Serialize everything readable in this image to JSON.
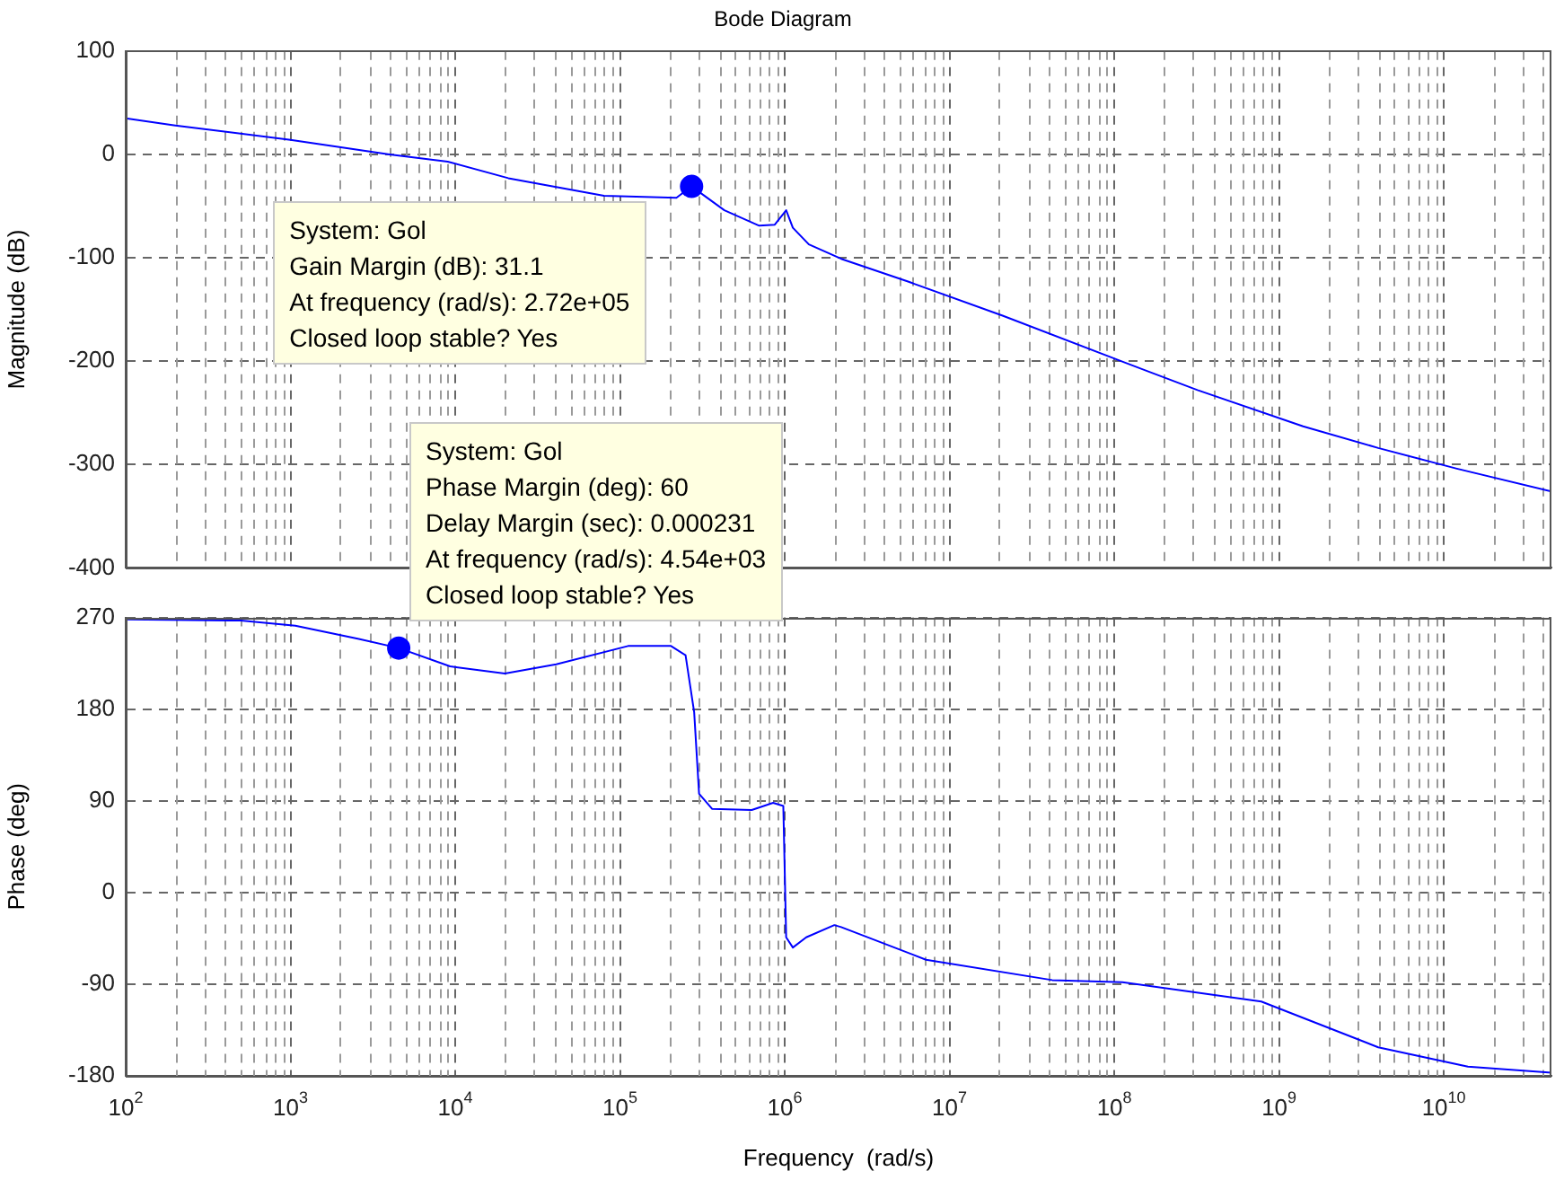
{
  "chart_data": [
    {
      "type": "line",
      "title": "Bode Diagram",
      "ylabel": "Magnitude (dB)",
      "log": "x",
      "grid": true,
      "tick_labels": "y",
      "xlim": [
        100,
        45000000000
      ],
      "xticks": [
        {
          "value": 100,
          "label": null
        },
        {
          "value": 1000,
          "label": null
        },
        {
          "value": 10000,
          "label": null
        },
        {
          "value": 100000,
          "label": null
        },
        {
          "value": 1000000,
          "label": null
        },
        {
          "value": 10000000,
          "label": null
        },
        {
          "value": 100000000,
          "label": null
        },
        {
          "value": 1000000000,
          "label": null
        },
        {
          "value": 10000000000,
          "label": null
        }
      ],
      "ylim": [
        -400,
        100
      ],
      "yticks": [
        -400,
        -300,
        -200,
        -100,
        0,
        100
      ],
      "series": [
        {
          "color": "#0000ff",
          "x": [
            100,
            200,
            1000,
            4000,
            9000,
            21000,
            80000,
            220000,
            272000,
            430000,
            700000,
            870000,
            1020000,
            1120000,
            1400000,
            2200000,
            5600000,
            21000000,
            110000000,
            320000000,
            1400000000,
            4000000000,
            12000000000,
            45000000000
          ],
          "values": [
            35,
            28,
            14,
            0,
            -7,
            -23,
            -40,
            -42,
            -31,
            -54,
            -69,
            -68,
            -54,
            -71,
            -87,
            -101,
            -123,
            -156,
            -200,
            -228,
            -263,
            -284,
            -304,
            -326
          ]
        },
        {
          "type": "scatter",
          "color": "#0000ff",
          "marker": "circle",
          "x": [
            272000
          ],
          "values": [
            -31
          ]
        }
      ],
      "annotations": [
        {
          "text": "System: Gol\nGain Margin (dB): 31.1\nAt frequency (rad/s): 2.72e+05\nClosed loop stable? Yes",
          "x": 272000,
          "y": -31
        }
      ]
    },
    {
      "type": "line",
      "ylabel": "Phase (deg)",
      "xlabel": "Frequency  (rad/s)",
      "log": "x",
      "grid": true,
      "xlim": [
        100,
        45000000000
      ],
      "xticks": [
        {
          "value": 100,
          "label": "10$^{2}$"
        },
        {
          "value": 1000,
          "label": "10$^{3}$"
        },
        {
          "value": 10000,
          "label": "10$^{4}$"
        },
        {
          "value": 100000,
          "label": "10$^{5}$"
        },
        {
          "value": 1000000,
          "label": "10$^{6}$"
        },
        {
          "value": 10000000,
          "label": "10$^{7}$"
        },
        {
          "value": 100000000,
          "label": "10$^{8}$"
        },
        {
          "value": 1000000000,
          "label": "10$^{9}$"
        },
        {
          "value": 10000000000,
          "label": "10$^{10}$"
        }
      ],
      "ylim": [
        -180,
        270
      ],
      "yticks": [
        -180,
        -90,
        0,
        90,
        180,
        270
      ],
      "series": [
        {
          "color": "#0000ff",
          "x": [
            100,
            500,
            1070,
            2600,
            4540,
            9300,
            20000,
            41000,
            112000,
            204000,
            250000,
            282000,
            302000,
            363000,
            630000,
            850000,
            980000,
            1020000,
            1120000,
            1350000,
            2000000,
            2200000,
            7200000,
            42000000,
            112000000,
            780000000,
            4000000000,
            14000000000,
            45000000000
          ],
          "values": [
            268,
            267,
            262,
            249,
            240,
            222,
            215,
            224,
            242,
            242,
            233,
            177,
            97,
            82,
            81,
            88,
            85,
            -44,
            -54,
            -44,
            -32,
            -34,
            -66,
            -86,
            -88,
            -107,
            -152,
            -171,
            -177
          ]
        },
        {
          "type": "scatter",
          "color": "#0000ff",
          "marker": "circle",
          "x": [
            4540
          ],
          "values": [
            240
          ]
        }
      ],
      "annotations": [
        {
          "text": "System: Gol\nPhase Margin (deg): 60\nDelay Margin (sec): 0.000231\nAt frequency (rad/s): 4.54e+03\nClosed loop stable? Yes",
          "x": 4540,
          "y": 240
        }
      ]
    }
  ]
}
